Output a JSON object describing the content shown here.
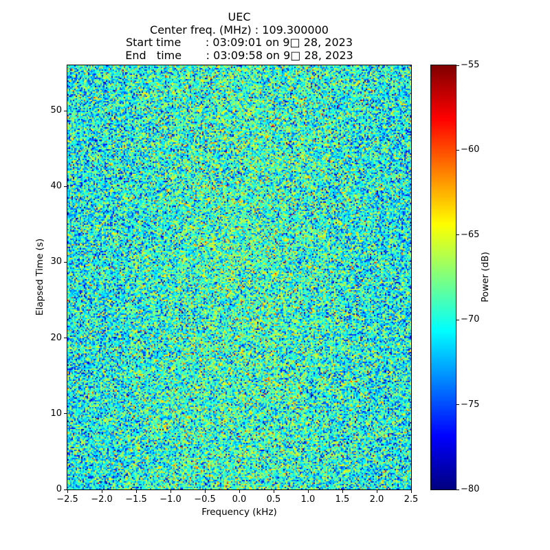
{
  "header": {
    "title": "UEC",
    "lines": [
      "Center freq. (MHz) : 109.300000",
      "Start time       : 03:09:01 on 9□ 28, 2023",
      "End   time       : 03:09:58 on 9□ 28, 2023"
    ]
  },
  "chart_data": {
    "type": "heatmap",
    "title": "UEC",
    "subtitle_lines": [
      "Center freq. (MHz) : 109.300000",
      "Start time       : 03:09:01 on 9□ 28, 2023",
      "End   time       : 03:09:58 on 9□ 28, 2023"
    ],
    "xlabel": "Frequency (kHz)",
    "ylabel": "Elapsed Time (s)",
    "xlim": [
      -2.5,
      2.5
    ],
    "ylim": [
      0,
      56
    ],
    "xtick_values": [
      -2.5,
      -2.0,
      -1.5,
      -1.0,
      -0.5,
      0.0,
      0.5,
      1.0,
      1.5,
      2.0,
      2.5
    ],
    "xtick_labels": [
      "−2.5",
      "−2.0",
      "−1.5",
      "−1.0",
      "−0.5",
      "0.0",
      "0.5",
      "1.0",
      "1.5",
      "2.0",
      "2.5"
    ],
    "ytick_values": [
      0,
      10,
      20,
      30,
      40,
      50
    ],
    "ytick_labels": [
      "0",
      "10",
      "20",
      "30",
      "40",
      "50"
    ],
    "grid": false,
    "legend": null,
    "colorbar": {
      "label": "Power (dB)",
      "colormap": "jet",
      "vmin": -80,
      "vmax": -55,
      "tick_values": [
        -55,
        -60,
        -65,
        -70,
        -75,
        -80
      ],
      "tick_labels": [
        "−55",
        "−60",
        "−65",
        "−70",
        "−75",
        "−80"
      ]
    },
    "noise_model": {
      "description": "broadband random noise spectrogram, no coherent signal; values in dB mapped through jet colormap",
      "rows": 309,
      "cols": 250,
      "mean_db": -70.1,
      "std_db": 3.6,
      "center_boost_db": 1.6,
      "center_sigma_frac": 0.26,
      "edge_bias_db": -0.6,
      "seed": 20230928
    }
  }
}
